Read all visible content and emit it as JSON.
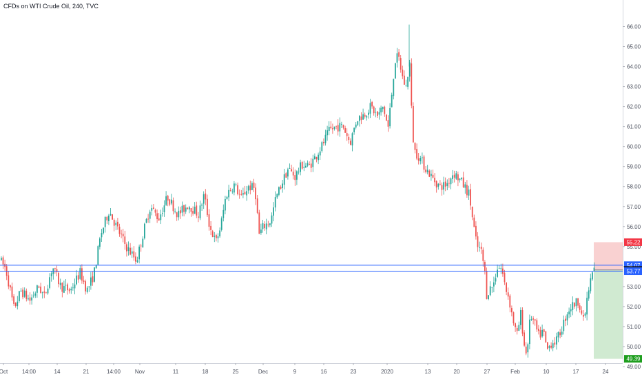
{
  "chart_data": {
    "type": "candlestick",
    "title": "CFDs on WTI Crude Oil, 240, TVC",
    "ylim": [
      48.5,
      66.5
    ],
    "y_ticks": [
      49,
      50,
      51,
      52,
      53,
      54,
      55,
      56,
      57,
      58,
      59,
      60,
      61,
      62,
      63,
      64,
      65,
      66
    ],
    "y_tick_labels": [
      "49.00",
      "50.00",
      "51.00",
      "52.00",
      "53.00",
      "54.00",
      "55.00",
      "56.00",
      "57.00",
      "58.00",
      "59.00",
      "60.00",
      "61.00",
      "62.00",
      "63.00",
      "64.00",
      "65.00",
      "66.00"
    ],
    "x_tick_labels": [
      "Oct",
      "14:00",
      "14",
      "21",
      "14:00",
      "Nov",
      "11",
      "18",
      "25",
      "Dec",
      "9",
      "16",
      "23",
      "2020",
      "13",
      "20",
      "27",
      "Feb",
      "10",
      "17",
      "24"
    ],
    "colors": {
      "up": "#26a69a",
      "down": "#ef5350",
      "level_line": "#2962ff",
      "stop_zone": "#f8c9c9",
      "target_zone": "#c8e6c9",
      "stop_badge": "#f23645",
      "target_badge": "#1e9e1e",
      "level_badge": "#2962ff",
      "entry_badge": "#131722"
    },
    "price_path": [
      [
        0,
        54.4
      ],
      [
        10,
        53.9
      ],
      [
        22,
        51.9
      ],
      [
        32,
        52.8
      ],
      [
        45,
        52.3
      ],
      [
        58,
        53.0
      ],
      [
        66,
        52.5
      ],
      [
        78,
        54.0
      ],
      [
        90,
        53.0
      ],
      [
        104,
        52.8
      ],
      [
        118,
        53.7
      ],
      [
        128,
        52.8
      ],
      [
        138,
        53.6
      ],
      [
        148,
        55.6
      ],
      [
        160,
        56.8
      ],
      [
        172,
        55.9
      ],
      [
        185,
        55.0
      ],
      [
        200,
        54.3
      ],
      [
        212,
        56.0
      ],
      [
        220,
        57.0
      ],
      [
        232,
        56.4
      ],
      [
        245,
        57.5
      ],
      [
        260,
        56.6
      ],
      [
        275,
        57.1
      ],
      [
        290,
        56.6
      ],
      [
        298,
        57.6
      ],
      [
        306,
        56.0
      ],
      [
        315,
        55.2
      ],
      [
        322,
        56.0
      ],
      [
        330,
        57.6
      ],
      [
        342,
        58.1
      ],
      [
        352,
        57.4
      ],
      [
        362,
        58.0
      ],
      [
        372,
        57.9
      ],
      [
        378,
        55.6
      ],
      [
        384,
        56.0
      ],
      [
        395,
        56.3
      ],
      [
        402,
        57.4
      ],
      [
        410,
        58.1
      ],
      [
        420,
        58.9
      ],
      [
        430,
        58.5
      ],
      [
        440,
        59.1
      ],
      [
        450,
        59.0
      ],
      [
        460,
        59.5
      ],
      [
        470,
        60.1
      ],
      [
        480,
        60.8
      ],
      [
        490,
        61.0
      ],
      [
        500,
        61.0
      ],
      [
        510,
        60.2
      ],
      [
        520,
        61.4
      ],
      [
        530,
        61.6
      ],
      [
        540,
        62.0
      ],
      [
        550,
        61.5
      ],
      [
        558,
        62.0
      ],
      [
        565,
        60.9
      ],
      [
        570,
        62.5
      ],
      [
        575,
        64.3
      ],
      [
        580,
        64.5
      ],
      [
        587,
        63.3
      ],
      [
        592,
        62.9
      ],
      [
        596,
        64.5
      ],
      [
        600,
        61.0
      ],
      [
        603,
        59.8
      ],
      [
        610,
        59.5
      ],
      [
        620,
        58.9
      ],
      [
        630,
        58.4
      ],
      [
        640,
        58.0
      ],
      [
        650,
        58.1
      ],
      [
        660,
        58.7
      ],
      [
        668,
        58.4
      ],
      [
        676,
        58.0
      ],
      [
        683,
        57.6
      ],
      [
        688,
        56.3
      ],
      [
        694,
        55.0
      ],
      [
        700,
        54.8
      ],
      [
        705,
        53.9
      ],
      [
        708,
        52.6
      ],
      [
        713,
        52.9
      ],
      [
        718,
        53.1
      ],
      [
        724,
        54.0
      ],
      [
        730,
        53.9
      ],
      [
        735,
        53.0
      ],
      [
        740,
        52.5
      ],
      [
        745,
        51.6
      ],
      [
        752,
        50.5
      ],
      [
        758,
        51.7
      ],
      [
        762,
        50.2
      ],
      [
        766,
        49.6
      ],
      [
        772,
        51.6
      ],
      [
        778,
        51.1
      ],
      [
        784,
        50.5
      ],
      [
        790,
        50.8
      ],
      [
        796,
        49.8
      ],
      [
        802,
        50.2
      ],
      [
        810,
        50.3
      ],
      [
        818,
        51.0
      ],
      [
        826,
        51.8
      ],
      [
        834,
        52.1
      ],
      [
        842,
        52.3
      ],
      [
        849,
        51.2
      ],
      [
        855,
        52.6
      ],
      [
        861,
        53.6
      ],
      [
        864,
        53.9
      ]
    ],
    "levels": [
      {
        "label": "55.22",
        "value": 55.22,
        "kind": "stop"
      },
      {
        "label": "54.07",
        "value": 54.07,
        "kind": "level"
      },
      {
        "label": "53.83",
        "value": 53.83,
        "kind": "entry"
      },
      {
        "label": "53.77",
        "value": 53.77,
        "kind": "level"
      },
      {
        "label": "49.39",
        "value": 49.39,
        "kind": "target"
      }
    ]
  }
}
